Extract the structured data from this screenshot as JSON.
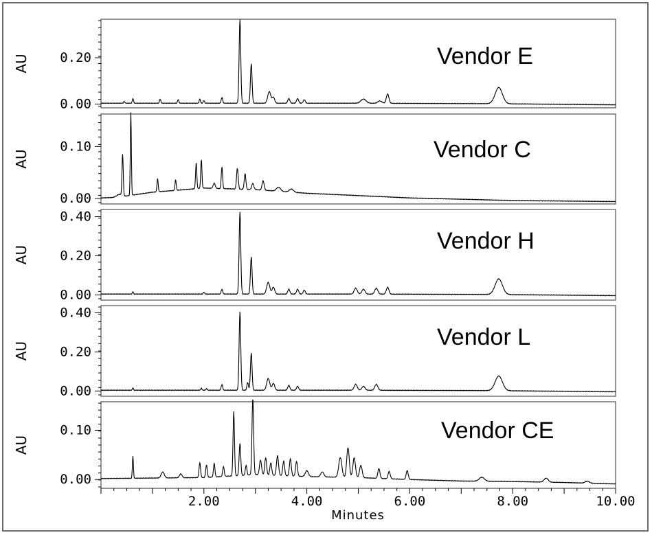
{
  "chart_data": {
    "type": "line",
    "xlabel": "Minutes",
    "xlim": [
      0,
      10
    ],
    "x_ticks": [
      2.0,
      4.0,
      6.0,
      8.0,
      10.0
    ],
    "x_tick_labels": [
      "2.00",
      "4.00",
      "6.00",
      "8.00",
      "10.00"
    ],
    "panels": [
      {
        "name": "Vendor E",
        "ylabel": "AU",
        "ylim": [
          -0.01,
          0.36
        ],
        "y_ticks": [
          0.0,
          0.2
        ],
        "y_tick_labels": [
          "0.00",
          "0.20"
        ],
        "baseline": [
          [
            0.0,
            0.004
          ],
          [
            5.0,
            0.004
          ],
          [
            7.6,
            0.002
          ],
          [
            10.0,
            -0.003
          ]
        ],
        "peaks": [
          [
            0.45,
            0.008,
            0.012
          ],
          [
            0.62,
            0.02,
            0.012
          ],
          [
            1.15,
            0.018,
            0.012
          ],
          [
            1.5,
            0.016,
            0.012
          ],
          [
            1.92,
            0.018,
            0.012
          ],
          [
            2.0,
            0.012,
            0.012
          ],
          [
            2.35,
            0.025,
            0.014
          ],
          [
            2.7,
            0.36,
            0.016
          ],
          [
            2.92,
            0.17,
            0.016
          ],
          [
            3.27,
            0.05,
            0.03
          ],
          [
            3.35,
            0.025,
            0.025
          ],
          [
            3.65,
            0.02,
            0.02
          ],
          [
            3.82,
            0.02,
            0.02
          ],
          [
            3.95,
            0.015,
            0.02
          ],
          [
            5.1,
            0.018,
            0.05
          ],
          [
            5.42,
            0.01,
            0.04
          ],
          [
            5.57,
            0.04,
            0.025
          ],
          [
            7.73,
            0.07,
            0.07
          ]
        ]
      },
      {
        "name": "Vendor C",
        "ylabel": "AU",
        "ylim": [
          -0.008,
          0.16
        ],
        "y_ticks": [
          0.0,
          0.1
        ],
        "y_tick_labels": [
          "0.00",
          "0.10"
        ],
        "baseline": [
          [
            0.0,
            0.001
          ],
          [
            0.3,
            0.002
          ],
          [
            1.0,
            0.012
          ],
          [
            2.0,
            0.02
          ],
          [
            3.0,
            0.017
          ],
          [
            4.0,
            0.01
          ],
          [
            6.0,
            0.001
          ],
          [
            8.0,
            -0.004
          ],
          [
            10.0,
            -0.006
          ]
        ],
        "peaks": [
          [
            0.35,
            0.005,
            0.05
          ],
          [
            0.42,
            0.08,
            0.012
          ],
          [
            0.58,
            0.16,
            0.01
          ],
          [
            1.1,
            0.025,
            0.012
          ],
          [
            1.45,
            0.02,
            0.012
          ],
          [
            1.85,
            0.05,
            0.012
          ],
          [
            1.95,
            0.055,
            0.012
          ],
          [
            2.35,
            0.042,
            0.013
          ],
          [
            2.2,
            0.01,
            0.02
          ],
          [
            2.65,
            0.04,
            0.016
          ],
          [
            2.8,
            0.03,
            0.016
          ],
          [
            2.95,
            0.012,
            0.02
          ],
          [
            3.15,
            0.018,
            0.02
          ],
          [
            3.45,
            0.008,
            0.04
          ],
          [
            3.7,
            0.006,
            0.04
          ]
        ]
      },
      {
        "name": "Vendor H",
        "ylabel": "AU",
        "ylim": [
          -0.02,
          0.43
        ],
        "y_ticks": [
          0.0,
          0.2,
          0.4
        ],
        "y_tick_labels": [
          "0.00",
          "0.20",
          "0.40"
        ],
        "baseline": [
          [
            0.0,
            0.004
          ],
          [
            5.0,
            0.004
          ],
          [
            7.6,
            0.002
          ],
          [
            10.0,
            -0.004
          ]
        ],
        "peaks": [
          [
            0.62,
            0.012,
            0.01
          ],
          [
            2.0,
            0.01,
            0.012
          ],
          [
            2.35,
            0.025,
            0.014
          ],
          [
            2.7,
            0.42,
            0.016
          ],
          [
            2.92,
            0.19,
            0.016
          ],
          [
            3.25,
            0.06,
            0.03
          ],
          [
            3.35,
            0.035,
            0.025
          ],
          [
            3.65,
            0.025,
            0.02
          ],
          [
            3.82,
            0.025,
            0.02
          ],
          [
            3.95,
            0.02,
            0.02
          ],
          [
            4.95,
            0.03,
            0.03
          ],
          [
            5.1,
            0.025,
            0.03
          ],
          [
            5.35,
            0.03,
            0.03
          ],
          [
            5.57,
            0.035,
            0.025
          ],
          [
            7.73,
            0.08,
            0.07
          ]
        ]
      },
      {
        "name": "Vendor L",
        "ylabel": "AU",
        "ylim": [
          -0.02,
          0.43
        ],
        "y_ticks": [
          0.0,
          0.2,
          0.4
        ],
        "y_tick_labels": [
          "0.00",
          "0.20",
          "0.40"
        ],
        "baseline": [
          [
            0.0,
            0.004
          ],
          [
            5.0,
            0.004
          ],
          [
            7.6,
            0.002
          ],
          [
            10.0,
            -0.004
          ]
        ],
        "peaks": [
          [
            0.62,
            0.012,
            0.01
          ],
          [
            1.95,
            0.01,
            0.012
          ],
          [
            2.05,
            0.008,
            0.012
          ],
          [
            2.35,
            0.03,
            0.014
          ],
          [
            2.7,
            0.4,
            0.016
          ],
          [
            2.85,
            0.04,
            0.015
          ],
          [
            2.92,
            0.19,
            0.016
          ],
          [
            3.25,
            0.06,
            0.03
          ],
          [
            3.35,
            0.035,
            0.025
          ],
          [
            3.65,
            0.025,
            0.02
          ],
          [
            3.82,
            0.02,
            0.02
          ],
          [
            4.95,
            0.03,
            0.03
          ],
          [
            5.1,
            0.02,
            0.03
          ],
          [
            5.35,
            0.03,
            0.03
          ],
          [
            7.73,
            0.075,
            0.07
          ]
        ]
      },
      {
        "name": "Vendor CE",
        "ylabel": "AU",
        "ylim": [
          -0.015,
          0.155
        ],
        "y_ticks": [
          0.0,
          0.1
        ],
        "y_tick_labels": [
          "0.00",
          "0.10"
        ],
        "baseline": [
          [
            0.0,
            0.002
          ],
          [
            1.0,
            0.003
          ],
          [
            2.0,
            0.004
          ],
          [
            3.0,
            0.01
          ],
          [
            4.0,
            0.006
          ],
          [
            5.0,
            0.004
          ],
          [
            6.0,
            0.0
          ],
          [
            7.0,
            -0.003
          ],
          [
            8.0,
            -0.004
          ],
          [
            9.0,
            -0.006
          ],
          [
            10.0,
            -0.009
          ]
        ],
        "peaks": [
          [
            0.62,
            0.045,
            0.01
          ],
          [
            1.2,
            0.012,
            0.03
          ],
          [
            1.55,
            0.008,
            0.025
          ],
          [
            1.92,
            0.03,
            0.015
          ],
          [
            2.05,
            0.025,
            0.015
          ],
          [
            2.2,
            0.028,
            0.014
          ],
          [
            2.38,
            0.02,
            0.015
          ],
          [
            2.58,
            0.13,
            0.014
          ],
          [
            2.7,
            0.065,
            0.016
          ],
          [
            2.82,
            0.02,
            0.015
          ],
          [
            2.95,
            0.155,
            0.016
          ],
          [
            3.1,
            0.03,
            0.02
          ],
          [
            3.2,
            0.035,
            0.018
          ],
          [
            3.3,
            0.025,
            0.018
          ],
          [
            3.43,
            0.04,
            0.02
          ],
          [
            3.55,
            0.03,
            0.018
          ],
          [
            3.68,
            0.035,
            0.018
          ],
          [
            3.8,
            0.03,
            0.018
          ],
          [
            4.0,
            0.012,
            0.03
          ],
          [
            4.3,
            0.01,
            0.03
          ],
          [
            4.65,
            0.04,
            0.03
          ],
          [
            4.8,
            0.06,
            0.025
          ],
          [
            4.92,
            0.04,
            0.025
          ],
          [
            5.05,
            0.025,
            0.025
          ],
          [
            5.4,
            0.02,
            0.02
          ],
          [
            5.6,
            0.015,
            0.02
          ],
          [
            5.95,
            0.018,
            0.02
          ],
          [
            7.4,
            0.008,
            0.05
          ],
          [
            8.65,
            0.008,
            0.04
          ],
          [
            9.45,
            0.004,
            0.04
          ]
        ]
      }
    ]
  }
}
